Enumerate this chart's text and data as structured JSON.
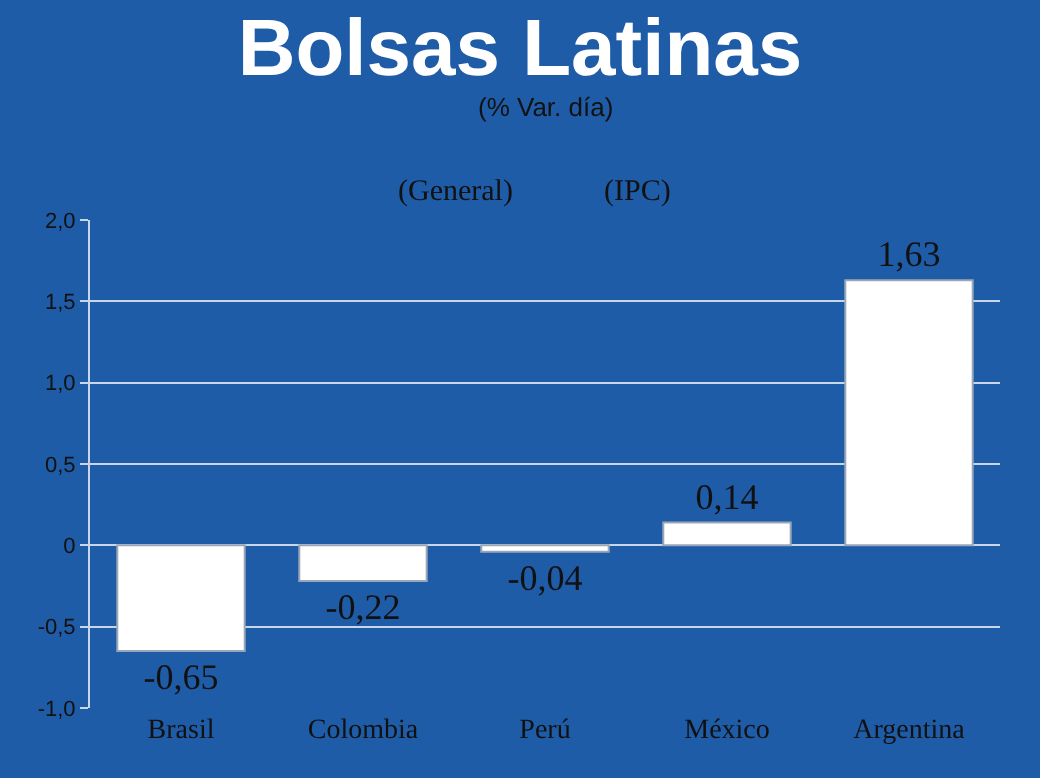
{
  "chart_data": {
    "type": "bar",
    "title": "Bolsas Latinas",
    "subtitle": "(% Var. día)",
    "categories": [
      "Brasil",
      "Colombia",
      "Perú",
      "México",
      "Argentina"
    ],
    "values": [
      -0.65,
      -0.22,
      -0.04,
      0.14,
      1.63
    ],
    "value_labels": [
      "-0,65",
      "-0,22",
      "-0,04",
      "0,14",
      "1,63"
    ],
    "color": "#ffffff",
    "ylim": [
      -1.0,
      2.0
    ],
    "yticks": [
      {
        "value": -1.0,
        "label": "-1,0"
      },
      {
        "value": -0.5,
        "label": "-0,5"
      },
      {
        "value": 0,
        "label": "0"
      },
      {
        "value": 0.5,
        "label": "0,5"
      },
      {
        "value": 1.0,
        "label": "1,0"
      },
      {
        "value": 1.5,
        "label": "1,5"
      },
      {
        "value": 2.0,
        "label": "2,0"
      }
    ],
    "grid": "y",
    "annotations": [
      "(General)",
      "(IPC)"
    ]
  }
}
